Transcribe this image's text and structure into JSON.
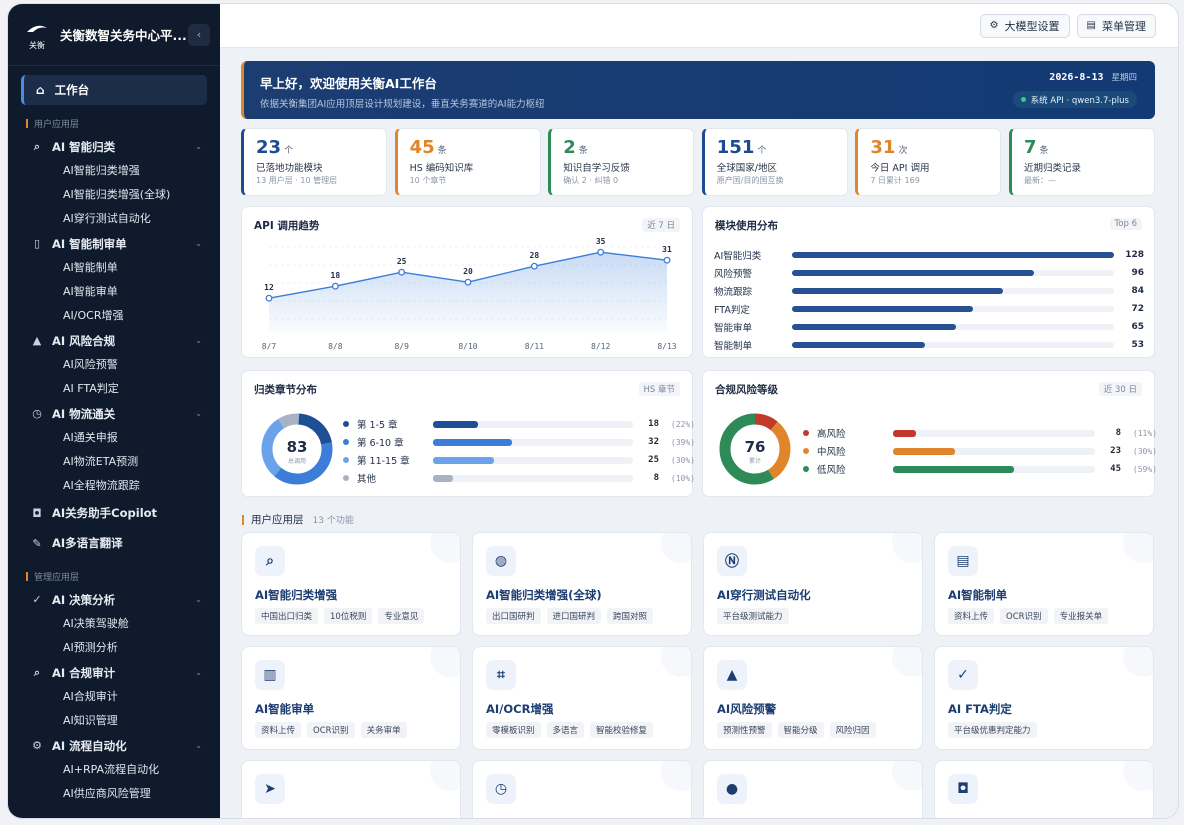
{
  "brand": {
    "title": "关衡数智关务中心平...",
    "logo_text": "关衡"
  },
  "sidebar": {
    "active": "工作台",
    "sections": [
      {
        "label": "用户应用层",
        "groups": [
          {
            "label": "AI 智能归类",
            "icon": "search-icon",
            "items": [
              "AI智能归类增强",
              "AI智能归类增强(全球)",
              "AI穿行测试自动化"
            ]
          },
          {
            "label": "AI 智能制审单",
            "icon": "document-icon",
            "items": [
              "AI智能制单",
              "AI智能审单",
              "AI/OCR增强"
            ]
          },
          {
            "label": "AI 风险合规",
            "icon": "warning-icon",
            "items": [
              "AI风险预警",
              "AI FTA判定"
            ]
          },
          {
            "label": "AI 物流通关",
            "icon": "clock-icon",
            "items": [
              "AI通关申报",
              "AI物流ETA预测",
              "AI全程物流跟踪"
            ]
          },
          {
            "label": "AI关务助手Copilot",
            "icon": "robot-icon",
            "items": []
          },
          {
            "label": "AI多语言翻译",
            "icon": "translate-icon",
            "items": []
          }
        ]
      },
      {
        "label": "管理应用层",
        "groups": [
          {
            "label": "AI 决策分析",
            "icon": "check-circle-icon",
            "items": [
              "AI决策驾驶舱",
              "AI预测分析"
            ]
          },
          {
            "label": "AI 合规审计",
            "icon": "search-icon",
            "items": [
              "AI合规审计",
              "AI知识管理"
            ]
          },
          {
            "label": "AI 流程自动化",
            "icon": "gear-icon",
            "items": [
              "AI+RPA流程自动化",
              "AI供应商风险管理"
            ]
          }
        ]
      }
    ]
  },
  "topbar": {
    "model_settings": "大模型设置",
    "menu_manage": "菜单管理"
  },
  "banner": {
    "greeting": "早上好，欢迎使用关衡AI工作台",
    "subtitle": "依据关衡集团AI应用顶层设计规划建设，垂直关务赛道的AI能力枢纽",
    "date": "2026-8-13",
    "weekday": "星期四",
    "api_status": "系统 API · qwen3.7-plus"
  },
  "stats": [
    {
      "value": "23",
      "unit": "个",
      "label": "已落地功能模块",
      "detail": "13 用户层 · 10 管理层",
      "color": "#1c4b8f"
    },
    {
      "value": "45",
      "unit": "条",
      "label": "HS 编码知识库",
      "detail": "10 个章节",
      "color": "#e0852b"
    },
    {
      "value": "2",
      "unit": "条",
      "label": "知识自学习反馈",
      "detail": "确认 2 · 纠错 0",
      "color": "#2e8b57"
    },
    {
      "value": "151",
      "unit": "个",
      "label": "全球国家/地区",
      "detail": "原产国/目的国互换",
      "color": "#1c4b8f"
    },
    {
      "value": "31",
      "unit": "次",
      "label": "今日 API 调用",
      "detail": "7 日累计 169",
      "color": "#e0852b"
    },
    {
      "value": "7",
      "unit": "条",
      "label": "近期归类记录",
      "detail": "最新：—",
      "color": "#2e8b57"
    }
  ],
  "api_trend": {
    "title": "API 调用趋势",
    "tag": "近 7 日"
  },
  "module_usage": {
    "title": "模块使用分布",
    "tag": "Top 6",
    "items": [
      {
        "name": "AI智能归类",
        "value": 128
      },
      {
        "name": "风险预警",
        "value": 96
      },
      {
        "name": "物流跟踪",
        "value": 84
      },
      {
        "name": "FTA判定",
        "value": 72
      },
      {
        "name": "智能审单",
        "value": 65
      },
      {
        "name": "智能制单",
        "value": 53
      }
    ]
  },
  "hs_chapters": {
    "title": "归类章节分布",
    "tag": "HS 章节",
    "total": "83",
    "total_label": "总调用",
    "items": [
      {
        "name": "第 1-5 章",
        "value": "18",
        "pct": "(22%)",
        "frac": 0.22,
        "color": "#1e4f95"
      },
      {
        "name": "第 6-10 章",
        "value": "32",
        "pct": "(39%)",
        "frac": 0.39,
        "color": "#3b7dd8"
      },
      {
        "name": "第 11-15 章",
        "value": "25",
        "pct": "(30%)",
        "frac": 0.3,
        "color": "#6aa3ea"
      },
      {
        "name": "其他",
        "value": "8",
        "pct": "(10%)",
        "frac": 0.1,
        "color": "#a7b2c2"
      }
    ]
  },
  "risk_levels": {
    "title": "合规风险等级",
    "tag": "近 30 日",
    "total": "76",
    "total_label": "累计",
    "items": [
      {
        "name": "高风险",
        "value": "8",
        "pct": "(11%)",
        "frac": 0.11,
        "color": "#c0392b"
      },
      {
        "name": "中风险",
        "value": "23",
        "pct": "(30%)",
        "frac": 0.3,
        "color": "#e0852b"
      },
      {
        "name": "低风险",
        "value": "45",
        "pct": "(59%)",
        "frac": 0.59,
        "color": "#2e8b57"
      }
    ]
  },
  "apps_header": {
    "title": "用户应用层",
    "count": "13 个功能"
  },
  "apps": [
    {
      "name": "AI智能归类增强",
      "icon": "search-icon",
      "glyph": "⌕",
      "tags": [
        "中国出口归类",
        "10位税则",
        "专业意见"
      ]
    },
    {
      "name": "AI智能归类增强(全球)",
      "icon": "globe-icon",
      "glyph": "◍",
      "tags": [
        "出口国研判",
        "进口国研判",
        "跨国对照"
      ]
    },
    {
      "name": "AI穿行测试自动化",
      "icon": "lightning-icon",
      "glyph": "Ⓝ",
      "tags": [
        "平台级测试能力"
      ]
    },
    {
      "name": "AI智能制单",
      "icon": "document-icon",
      "glyph": "▤",
      "tags": [
        "资料上传",
        "OCR识别",
        "专业报关单"
      ]
    },
    {
      "name": "AI智能审单",
      "icon": "document-check-icon",
      "glyph": "▥",
      "tags": [
        "资料上传",
        "OCR识别",
        "关务审单"
      ]
    },
    {
      "name": "AI/OCR增强",
      "icon": "scan-icon",
      "glyph": "⌗",
      "tags": [
        "零模板识别",
        "多语言",
        "智能校验修复"
      ]
    },
    {
      "name": "AI风险预警",
      "icon": "warning-icon",
      "glyph": "▲",
      "tags": [
        "预测性预警",
        "智能分级",
        "风险归因"
      ]
    },
    {
      "name": "AI FTA判定",
      "icon": "check-circle-icon",
      "glyph": "✓",
      "tags": [
        "平台级优惠判定能力"
      ]
    },
    {
      "name": "",
      "icon": "send-icon",
      "glyph": "➤",
      "tags": []
    },
    {
      "name": "",
      "icon": "clock-icon",
      "glyph": "◷",
      "tags": []
    },
    {
      "name": "",
      "icon": "location-icon",
      "glyph": "●",
      "tags": []
    },
    {
      "name": "",
      "icon": "robot-icon",
      "glyph": "◘",
      "tags": []
    }
  ],
  "chart_data": [
    {
      "type": "line",
      "title": "API 调用趋势",
      "x": [
        "8/7",
        "8/8",
        "8/9",
        "8/10",
        "8/11",
        "8/12",
        "8/13"
      ],
      "values": [
        12,
        18,
        25,
        20,
        28,
        35,
        31
      ]
    },
    {
      "type": "bar",
      "title": "模块使用分布",
      "categories": [
        "AI智能归类",
        "风险预警",
        "物流跟踪",
        "FTA判定",
        "智能审单",
        "智能制单"
      ],
      "values": [
        128,
        96,
        84,
        72,
        65,
        53
      ]
    },
    {
      "type": "pie",
      "title": "归类章节分布",
      "categories": [
        "第 1-5 章",
        "第 6-10 章",
        "第 11-15 章",
        "其他"
      ],
      "values": [
        18,
        32,
        25,
        8
      ]
    },
    {
      "type": "pie",
      "title": "合规风险等级",
      "categories": [
        "高风险",
        "中风险",
        "低风险"
      ],
      "values": [
        8,
        23,
        45
      ]
    }
  ]
}
